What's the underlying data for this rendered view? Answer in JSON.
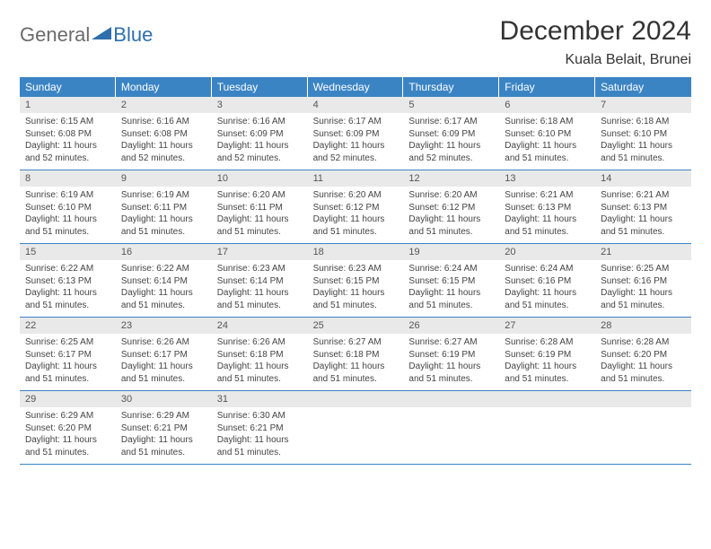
{
  "brand": {
    "part1": "General",
    "part2": "Blue"
  },
  "title": "December 2024",
  "location": "Kuala Belait, Brunei",
  "colors": {
    "header_bg": "#3b84c4",
    "header_text": "#ffffff",
    "daynum_bg": "#e9e9e9",
    "divider": "#3b84c4",
    "body_text": "#444444",
    "logo_gray": "#6b6b6b",
    "logo_blue": "#2f6fad"
  },
  "typography": {
    "title_fontsize": 30,
    "location_fontsize": 16,
    "weekday_fontsize": 12,
    "daynum_fontsize": 11,
    "body_fontsize": 10
  },
  "weekdays": [
    "Sunday",
    "Monday",
    "Tuesday",
    "Wednesday",
    "Thursday",
    "Friday",
    "Saturday"
  ],
  "weeks": [
    [
      {
        "n": "1",
        "sr": "Sunrise: 6:15 AM",
        "ss": "Sunset: 6:08 PM",
        "dl": "Daylight: 11 hours and 52 minutes."
      },
      {
        "n": "2",
        "sr": "Sunrise: 6:16 AM",
        "ss": "Sunset: 6:08 PM",
        "dl": "Daylight: 11 hours and 52 minutes."
      },
      {
        "n": "3",
        "sr": "Sunrise: 6:16 AM",
        "ss": "Sunset: 6:09 PM",
        "dl": "Daylight: 11 hours and 52 minutes."
      },
      {
        "n": "4",
        "sr": "Sunrise: 6:17 AM",
        "ss": "Sunset: 6:09 PM",
        "dl": "Daylight: 11 hours and 52 minutes."
      },
      {
        "n": "5",
        "sr": "Sunrise: 6:17 AM",
        "ss": "Sunset: 6:09 PM",
        "dl": "Daylight: 11 hours and 52 minutes."
      },
      {
        "n": "6",
        "sr": "Sunrise: 6:18 AM",
        "ss": "Sunset: 6:10 PM",
        "dl": "Daylight: 11 hours and 51 minutes."
      },
      {
        "n": "7",
        "sr": "Sunrise: 6:18 AM",
        "ss": "Sunset: 6:10 PM",
        "dl": "Daylight: 11 hours and 51 minutes."
      }
    ],
    [
      {
        "n": "8",
        "sr": "Sunrise: 6:19 AM",
        "ss": "Sunset: 6:10 PM",
        "dl": "Daylight: 11 hours and 51 minutes."
      },
      {
        "n": "9",
        "sr": "Sunrise: 6:19 AM",
        "ss": "Sunset: 6:11 PM",
        "dl": "Daylight: 11 hours and 51 minutes."
      },
      {
        "n": "10",
        "sr": "Sunrise: 6:20 AM",
        "ss": "Sunset: 6:11 PM",
        "dl": "Daylight: 11 hours and 51 minutes."
      },
      {
        "n": "11",
        "sr": "Sunrise: 6:20 AM",
        "ss": "Sunset: 6:12 PM",
        "dl": "Daylight: 11 hours and 51 minutes."
      },
      {
        "n": "12",
        "sr": "Sunrise: 6:20 AM",
        "ss": "Sunset: 6:12 PM",
        "dl": "Daylight: 11 hours and 51 minutes."
      },
      {
        "n": "13",
        "sr": "Sunrise: 6:21 AM",
        "ss": "Sunset: 6:13 PM",
        "dl": "Daylight: 11 hours and 51 minutes."
      },
      {
        "n": "14",
        "sr": "Sunrise: 6:21 AM",
        "ss": "Sunset: 6:13 PM",
        "dl": "Daylight: 11 hours and 51 minutes."
      }
    ],
    [
      {
        "n": "15",
        "sr": "Sunrise: 6:22 AM",
        "ss": "Sunset: 6:13 PM",
        "dl": "Daylight: 11 hours and 51 minutes."
      },
      {
        "n": "16",
        "sr": "Sunrise: 6:22 AM",
        "ss": "Sunset: 6:14 PM",
        "dl": "Daylight: 11 hours and 51 minutes."
      },
      {
        "n": "17",
        "sr": "Sunrise: 6:23 AM",
        "ss": "Sunset: 6:14 PM",
        "dl": "Daylight: 11 hours and 51 minutes."
      },
      {
        "n": "18",
        "sr": "Sunrise: 6:23 AM",
        "ss": "Sunset: 6:15 PM",
        "dl": "Daylight: 11 hours and 51 minutes."
      },
      {
        "n": "19",
        "sr": "Sunrise: 6:24 AM",
        "ss": "Sunset: 6:15 PM",
        "dl": "Daylight: 11 hours and 51 minutes."
      },
      {
        "n": "20",
        "sr": "Sunrise: 6:24 AM",
        "ss": "Sunset: 6:16 PM",
        "dl": "Daylight: 11 hours and 51 minutes."
      },
      {
        "n": "21",
        "sr": "Sunrise: 6:25 AM",
        "ss": "Sunset: 6:16 PM",
        "dl": "Daylight: 11 hours and 51 minutes."
      }
    ],
    [
      {
        "n": "22",
        "sr": "Sunrise: 6:25 AM",
        "ss": "Sunset: 6:17 PM",
        "dl": "Daylight: 11 hours and 51 minutes."
      },
      {
        "n": "23",
        "sr": "Sunrise: 6:26 AM",
        "ss": "Sunset: 6:17 PM",
        "dl": "Daylight: 11 hours and 51 minutes."
      },
      {
        "n": "24",
        "sr": "Sunrise: 6:26 AM",
        "ss": "Sunset: 6:18 PM",
        "dl": "Daylight: 11 hours and 51 minutes."
      },
      {
        "n": "25",
        "sr": "Sunrise: 6:27 AM",
        "ss": "Sunset: 6:18 PM",
        "dl": "Daylight: 11 hours and 51 minutes."
      },
      {
        "n": "26",
        "sr": "Sunrise: 6:27 AM",
        "ss": "Sunset: 6:19 PM",
        "dl": "Daylight: 11 hours and 51 minutes."
      },
      {
        "n": "27",
        "sr": "Sunrise: 6:28 AM",
        "ss": "Sunset: 6:19 PM",
        "dl": "Daylight: 11 hours and 51 minutes."
      },
      {
        "n": "28",
        "sr": "Sunrise: 6:28 AM",
        "ss": "Sunset: 6:20 PM",
        "dl": "Daylight: 11 hours and 51 minutes."
      }
    ],
    [
      {
        "n": "29",
        "sr": "Sunrise: 6:29 AM",
        "ss": "Sunset: 6:20 PM",
        "dl": "Daylight: 11 hours and 51 minutes."
      },
      {
        "n": "30",
        "sr": "Sunrise: 6:29 AM",
        "ss": "Sunset: 6:21 PM",
        "dl": "Daylight: 11 hours and 51 minutes."
      },
      {
        "n": "31",
        "sr": "Sunrise: 6:30 AM",
        "ss": "Sunset: 6:21 PM",
        "dl": "Daylight: 11 hours and 51 minutes."
      },
      null,
      null,
      null,
      null
    ]
  ]
}
